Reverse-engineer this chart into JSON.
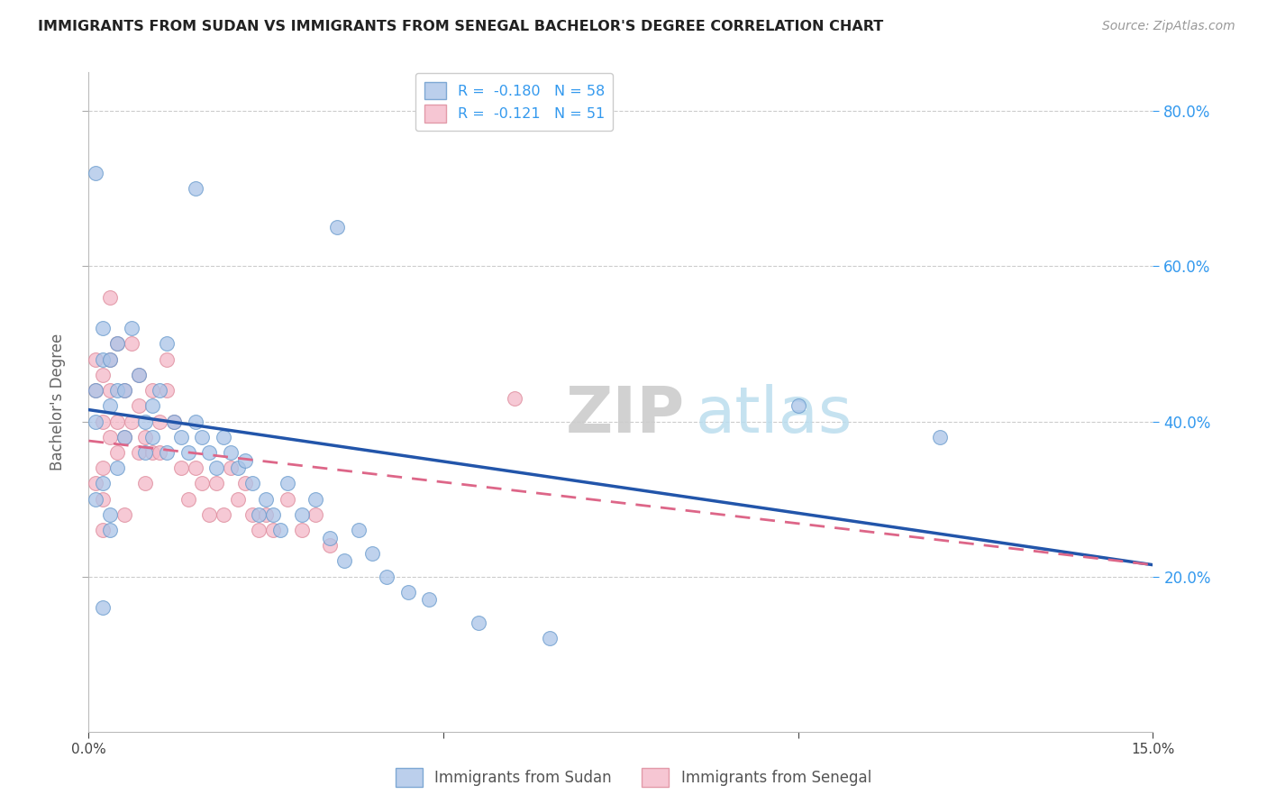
{
  "title": "IMMIGRANTS FROM SUDAN VS IMMIGRANTS FROM SENEGAL BACHELOR'S DEGREE CORRELATION CHART",
  "source": "Source: ZipAtlas.com",
  "ylabel": "Bachelor's Degree",
  "legend_label1": "Immigrants from Sudan",
  "legend_label2": "Immigrants from Senegal",
  "R1": -0.18,
  "N1": 58,
  "R2": -0.121,
  "N2": 51,
  "color1": "#aac4e8",
  "color2": "#f4b8c8",
  "edge_color1": "#6699cc",
  "edge_color2": "#dd8899",
  "trend_color1": "#2255aa",
  "trend_color2": "#dd6688",
  "xlim": [
    0.0,
    0.15
  ],
  "ylim": [
    0.0,
    0.85
  ],
  "trend1_x0": 0.0,
  "trend1_y0": 0.415,
  "trend1_x1": 0.15,
  "trend1_y1": 0.215,
  "trend2_x0": 0.0,
  "trend2_y0": 0.375,
  "trend2_x1": 0.15,
  "trend2_y1": 0.215,
  "sudan_x": [
    0.001,
    0.015,
    0.035,
    0.001,
    0.001,
    0.002,
    0.002,
    0.003,
    0.003,
    0.004,
    0.004,
    0.005,
    0.005,
    0.006,
    0.007,
    0.008,
    0.008,
    0.009,
    0.009,
    0.01,
    0.011,
    0.011,
    0.012,
    0.013,
    0.014,
    0.015,
    0.016,
    0.017,
    0.018,
    0.019,
    0.02,
    0.021,
    0.022,
    0.023,
    0.024,
    0.025,
    0.026,
    0.027,
    0.028,
    0.03,
    0.032,
    0.034,
    0.036,
    0.038,
    0.04,
    0.042,
    0.045,
    0.048,
    0.001,
    0.002,
    0.003,
    0.003,
    0.004,
    0.1,
    0.12,
    0.055,
    0.065,
    0.002
  ],
  "sudan_y": [
    0.72,
    0.7,
    0.65,
    0.44,
    0.4,
    0.52,
    0.48,
    0.42,
    0.48,
    0.5,
    0.44,
    0.38,
    0.44,
    0.52,
    0.46,
    0.4,
    0.36,
    0.42,
    0.38,
    0.44,
    0.5,
    0.36,
    0.4,
    0.38,
    0.36,
    0.4,
    0.38,
    0.36,
    0.34,
    0.38,
    0.36,
    0.34,
    0.35,
    0.32,
    0.28,
    0.3,
    0.28,
    0.26,
    0.32,
    0.28,
    0.3,
    0.25,
    0.22,
    0.26,
    0.23,
    0.2,
    0.18,
    0.17,
    0.3,
    0.32,
    0.28,
    0.26,
    0.34,
    0.42,
    0.38,
    0.14,
    0.12,
    0.16
  ],
  "senegal_x": [
    0.001,
    0.001,
    0.002,
    0.002,
    0.003,
    0.003,
    0.004,
    0.004,
    0.005,
    0.005,
    0.006,
    0.006,
    0.007,
    0.007,
    0.008,
    0.009,
    0.009,
    0.01,
    0.01,
    0.011,
    0.011,
    0.012,
    0.013,
    0.014,
    0.015,
    0.016,
    0.017,
    0.018,
    0.019,
    0.02,
    0.021,
    0.022,
    0.023,
    0.024,
    0.025,
    0.026,
    0.028,
    0.03,
    0.032,
    0.034,
    0.001,
    0.002,
    0.002,
    0.003,
    0.003,
    0.004,
    0.005,
    0.007,
    0.008,
    0.06,
    0.002
  ],
  "senegal_y": [
    0.48,
    0.44,
    0.46,
    0.4,
    0.56,
    0.38,
    0.4,
    0.36,
    0.38,
    0.44,
    0.4,
    0.5,
    0.36,
    0.42,
    0.38,
    0.36,
    0.44,
    0.4,
    0.36,
    0.44,
    0.48,
    0.4,
    0.34,
    0.3,
    0.34,
    0.32,
    0.28,
    0.32,
    0.28,
    0.34,
    0.3,
    0.32,
    0.28,
    0.26,
    0.28,
    0.26,
    0.3,
    0.26,
    0.28,
    0.24,
    0.32,
    0.34,
    0.3,
    0.48,
    0.44,
    0.5,
    0.28,
    0.46,
    0.32,
    0.43,
    0.26
  ],
  "watermark_zip": "ZIP",
  "watermark_atlas": "atlas",
  "background_color": "#ffffff",
  "grid_color": "#cccccc",
  "right_tick_color": "#3399ee",
  "title_color": "#222222",
  "source_color": "#999999",
  "ylabel_color": "#666666",
  "xtick_color": "#444444"
}
